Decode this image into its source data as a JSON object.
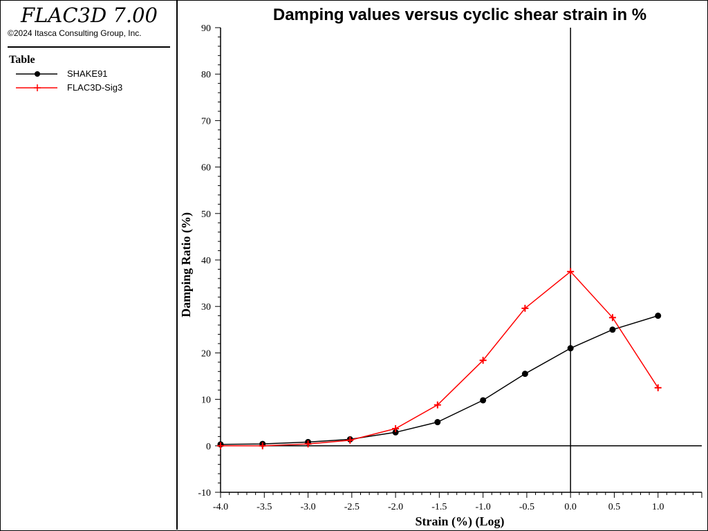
{
  "app": {
    "title": "FLAC3D 7.00",
    "copyright": "©2024 Itasca Consulting Group, Inc."
  },
  "legend": {
    "title": "Table",
    "items": [
      {
        "label": "SHAKE91",
        "color": "#000000",
        "marker": "circle"
      },
      {
        "label": "FLAC3D-Sig3",
        "color": "#ff0000",
        "marker": "plus"
      }
    ]
  },
  "chart_data": {
    "type": "line",
    "title": "Damping values versus cyclic shear strain in %",
    "xlabel": "Strain (%) (Log)",
    "ylabel": "Damping Ratio (%)",
    "xlim": [
      -4.0,
      1.5
    ],
    "ylim": [
      -10,
      90
    ],
    "x_ticks": [
      -4.0,
      -3.5,
      -3.0,
      -2.5,
      -2.0,
      -1.5,
      -1.0,
      -0.5,
      0.0,
      0.5,
      1.0
    ],
    "x_tick_labels": [
      "-4.0",
      "-3.5",
      "-3.0",
      "-2.5",
      "-2.0",
      "-1.5",
      "-1.0",
      "-0.5",
      "0.0",
      "0.5",
      "1.0"
    ],
    "y_ticks": [
      -10,
      0,
      10,
      20,
      30,
      40,
      50,
      60,
      70,
      80,
      90
    ],
    "y_tick_labels": [
      "-10",
      "0",
      "10",
      "20",
      "30",
      "40",
      "50",
      "60",
      "70",
      "80",
      "90"
    ],
    "grid": false,
    "legend_position": "left-panel",
    "series": [
      {
        "name": "SHAKE91",
        "color": "#000000",
        "marker": "circle",
        "x": [
          -4.0,
          -3.52,
          -3.0,
          -2.52,
          -2.0,
          -1.52,
          -1.0,
          -0.52,
          0.0,
          0.48,
          1.0
        ],
        "y": [
          0.3,
          0.4,
          0.8,
          1.4,
          2.9,
          5.1,
          9.8,
          15.5,
          21.0,
          25.0,
          28.0
        ]
      },
      {
        "name": "FLAC3D-Sig3",
        "color": "#ff0000",
        "marker": "plus",
        "x": [
          -4.0,
          -3.52,
          -3.0,
          -2.52,
          -2.0,
          -1.52,
          -1.0,
          -0.52,
          0.0,
          0.48,
          1.0
        ],
        "y": [
          0.0,
          0.0,
          0.4,
          1.2,
          3.7,
          8.8,
          18.4,
          29.6,
          37.5,
          27.6,
          12.5
        ]
      }
    ]
  }
}
